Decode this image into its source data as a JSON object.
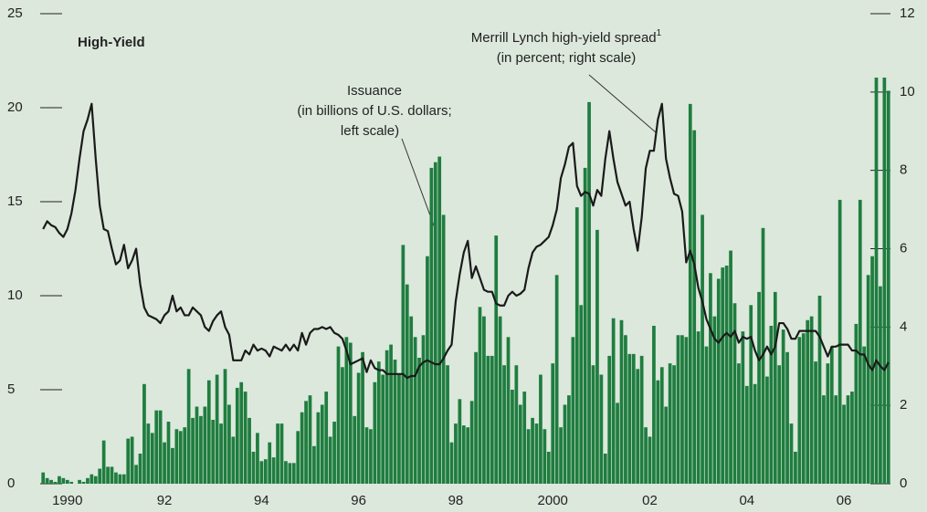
{
  "chart_data": {
    "type": "bar",
    "title": "High-Yield",
    "annotations": [
      "Issuance",
      "(in billions of U.S. dollars;",
      "left scale)",
      "Merrill Lynch high-yield spread",
      "1",
      "(in percent; right scale)"
    ],
    "categories": [
      null,
      null,
      null,
      null,
      null,
      null,
      "1990",
      null,
      null,
      null,
      null,
      null,
      null,
      null,
      null,
      null,
      null,
      null,
      null,
      null,
      null,
      null,
      null,
      null,
      null,
      null,
      null,
      null,
      null,
      null,
      "92",
      null,
      null,
      null,
      null,
      null,
      null,
      null,
      null,
      null,
      null,
      null,
      null,
      null,
      null,
      null,
      null,
      null,
      null,
      null,
      null,
      null,
      null,
      null,
      "94",
      null,
      null,
      null,
      null,
      null,
      null,
      null,
      null,
      null,
      null,
      null,
      null,
      null,
      null,
      null,
      null,
      null,
      null,
      null,
      null,
      null,
      null,
      null,
      "96",
      null,
      null,
      null,
      null,
      null,
      null,
      null,
      null,
      null,
      null,
      null,
      null,
      null,
      null,
      null,
      null,
      null,
      null,
      null,
      null,
      null,
      null,
      null,
      "98",
      null,
      null,
      null,
      null,
      null,
      null,
      null,
      null,
      null,
      null,
      null,
      null,
      null,
      null,
      null,
      null,
      null,
      null,
      null,
      null,
      null,
      null,
      null,
      "2000",
      null,
      null,
      null,
      null,
      null,
      null,
      null,
      null,
      null,
      null,
      null,
      null,
      null,
      null,
      null,
      null,
      null,
      null,
      null,
      null,
      null,
      null,
      null,
      "02",
      null,
      null,
      null,
      null,
      null,
      null,
      null,
      null,
      null,
      null,
      null,
      null,
      null,
      null,
      null,
      null,
      null,
      null,
      null,
      null,
      null,
      null,
      null,
      "04",
      null,
      null,
      null,
      null,
      null,
      null,
      null,
      null,
      null,
      null,
      null,
      null,
      null,
      null,
      null,
      null,
      null,
      null,
      null,
      null,
      null,
      null,
      null,
      "06",
      null,
      null,
      null,
      null,
      null,
      null,
      null,
      null,
      null,
      null,
      null
    ],
    "series": [
      {
        "type": "bar",
        "color": "#1f7d3f",
        "values": [
          0.6,
          0.3,
          0.2,
          0.1,
          0.4,
          0.3,
          0.2,
          0.1,
          0,
          0.2,
          0.1,
          0.3,
          0.5,
          0.4,
          0.8,
          2.3,
          0.9,
          0.9,
          0.6,
          0.5,
          0.5,
          2.4,
          2.5,
          1.0,
          1.6,
          5.3,
          3.2,
          2.7,
          3.9,
          3.9,
          2.2,
          3.3,
          1.9,
          2.9,
          2.8,
          3.0,
          6.1,
          3.5,
          4.1,
          3.6,
          4.1,
          5.5,
          3.4,
          5.8,
          3.2,
          6.1,
          4.2,
          2.5,
          5.1,
          5.4,
          4.9,
          3.5,
          1.7,
          2.7,
          1.2,
          1.3,
          2.2,
          1.4,
          3.2,
          3.2,
          1.2,
          1.1,
          1.1,
          2.8,
          3.8,
          4.4,
          4.7,
          2.0,
          3.8,
          4.2,
          4.9,
          2.5,
          3.3,
          7.3,
          6.2,
          7.8,
          7.5,
          3.6,
          5.9,
          7.0,
          3.0,
          2.9,
          5.4,
          6.5,
          5.8,
          7.1,
          7.4,
          6.6,
          5.8,
          12.7,
          10.6,
          8.9,
          7.8,
          6.7,
          7.9,
          12.1,
          16.8,
          17.1,
          17.4,
          14.3,
          6.3,
          2.2,
          3.2,
          4.5,
          3.1,
          3.0,
          4.4,
          7.0,
          9.4,
          8.9,
          6.8,
          6.8,
          13.2,
          8.9,
          6.3,
          7.8,
          5.0,
          6.3,
          4.2,
          4.9,
          2.9,
          3.5,
          3.2,
          5.8,
          2.9,
          1.7,
          6.4,
          11.1,
          3.0,
          4.2,
          4.7,
          7.8,
          14.7,
          9.5,
          16.8,
          20.3,
          6.3,
          13.5,
          5.8,
          1.6,
          6.8,
          8.8,
          4.3,
          8.7,
          7.9,
          6.9,
          6.9,
          6.1,
          6.8,
          3.0,
          2.5,
          8.4,
          5.5,
          6.2,
          4.1,
          6.4,
          6.3,
          7.9,
          7.9,
          7.8,
          20.2,
          18.8,
          8.1,
          14.3,
          7.3,
          11.2,
          8.9,
          10.9,
          11.5,
          11.6,
          12.4,
          9.6,
          6.4,
          8.1,
          5.2,
          9.5,
          5.3,
          10.2,
          13.6,
          5.7,
          8.4,
          10.2,
          6.3,
          8.2,
          7.0,
          3.2,
          1.7,
          7.8,
          8.0,
          8.7,
          8.9,
          6.5,
          10.0,
          4.7,
          6.4,
          7.3,
          4.7,
          15.1,
          4.2,
          4.7,
          4.9,
          8.5,
          15.1,
          7.3,
          11.1,
          12.1,
          21.6,
          10.5,
          21.6,
          20.9
        ]
      },
      {
        "type": "line",
        "axis": "y2",
        "color": "#1a1a1a",
        "values": [
          6.5,
          6.7,
          6.6,
          6.55,
          6.4,
          6.3,
          6.5,
          6.9,
          7.5,
          8.3,
          9.0,
          9.3,
          9.7,
          8.3,
          7.1,
          6.5,
          6.45,
          6.0,
          5.6,
          5.7,
          6.1,
          5.5,
          5.7,
          6.0,
          5.1,
          4.5,
          4.3,
          4.25,
          4.2,
          4.1,
          4.3,
          4.4,
          4.8,
          4.4,
          4.5,
          4.3,
          4.3,
          4.5,
          4.4,
          4.3,
          4.0,
          3.9,
          4.15,
          4.3,
          4.4,
          4.0,
          3.8,
          3.15,
          3.15,
          3.15,
          3.4,
          3.3,
          3.55,
          3.4,
          3.45,
          3.4,
          3.25,
          3.5,
          3.45,
          3.4,
          3.55,
          3.4,
          3.55,
          3.4,
          3.85,
          3.55,
          3.85,
          3.95,
          3.95,
          4.0,
          3.95,
          4.0,
          3.85,
          3.8,
          3.7,
          3.4,
          3.05,
          3.1,
          3.15,
          3.2,
          2.85,
          3.15,
          2.95,
          2.9,
          2.9,
          2.8,
          2.8,
          2.8,
          2.8,
          2.8,
          2.7,
          2.75,
          2.75,
          3.0,
          3.1,
          3.15,
          3.1,
          3.05,
          3.05,
          3.2,
          3.4,
          3.55,
          4.65,
          5.35,
          5.9,
          6.2,
          5.25,
          5.55,
          5.25,
          4.95,
          4.9,
          4.9,
          4.6,
          4.55,
          4.55,
          4.8,
          4.9,
          4.8,
          4.85,
          4.95,
          5.5,
          5.9,
          6.05,
          6.1,
          6.2,
          6.3,
          6.6,
          7.0,
          7.8,
          8.15,
          8.6,
          8.7,
          7.6,
          7.35,
          7.45,
          7.4,
          7.1,
          7.5,
          7.35,
          8.3,
          9.0,
          8.3,
          7.7,
          7.4,
          7.1,
          7.2,
          6.5,
          5.95,
          6.8,
          8.05,
          8.5,
          8.5,
          9.3,
          9.7,
          8.3,
          7.8,
          7.4,
          7.35,
          6.95,
          5.65,
          5.95,
          5.6,
          5.0,
          4.65,
          4.2,
          3.95,
          3.7,
          3.6,
          3.75,
          3.85,
          3.75,
          3.9,
          3.6,
          3.75,
          3.7,
          3.75,
          3.4,
          3.15,
          3.3,
          3.5,
          3.3,
          3.5,
          4.1,
          4.1,
          3.95,
          3.7,
          3.7,
          3.9,
          3.9,
          3.9,
          3.9,
          3.9,
          3.75,
          3.5,
          3.25,
          3.5,
          3.5,
          3.55,
          3.55,
          3.55,
          3.4,
          3.4,
          3.3,
          3.3,
          3.05,
          2.9,
          3.15,
          3.0,
          2.9,
          3.1
        ]
      }
    ],
    "ylim": [
      0,
      25
    ],
    "yticks": [
      0,
      5,
      10,
      15,
      20,
      25
    ],
    "y2lim": [
      0,
      12
    ],
    "y2ticks": [
      0,
      2,
      4,
      6,
      8,
      10,
      12
    ]
  }
}
